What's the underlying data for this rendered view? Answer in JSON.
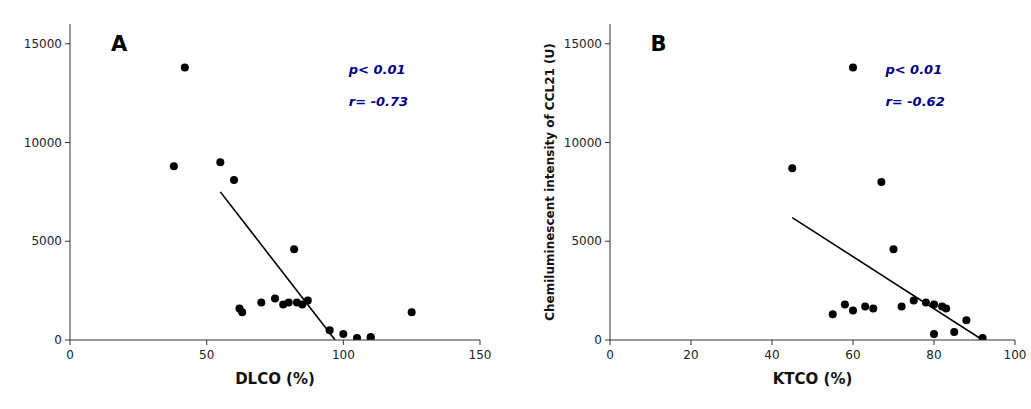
{
  "chart_data": [
    {
      "type": "scatter",
      "title": "A",
      "xlabel": "DLCO (%)",
      "xlim": [
        0,
        150
      ],
      "ylim": [
        0,
        16000
      ],
      "xticks": [
        0,
        50,
        100,
        150
      ],
      "yticks": [
        0,
        5000,
        10000,
        15000
      ],
      "grid": false,
      "annotations": [
        {
          "text": "p< 0.01",
          "color": "#00008B"
        },
        {
          "text": "r= -0.73",
          "color": "#00008B"
        }
      ],
      "series": [
        {
          "type": "scatter",
          "color": "#000000",
          "x": [
            38,
            42,
            55,
            60,
            62,
            63,
            70,
            75,
            78,
            80,
            82,
            83,
            85,
            87,
            95,
            100,
            105,
            110,
            110,
            125
          ],
          "values": [
            8800,
            13800,
            9000,
            8100,
            1600,
            1400,
            1900,
            2100,
            1800,
            1900,
            4600,
            1900,
            1800,
            2000,
            500,
            300,
            100,
            150,
            100,
            1400
          ]
        },
        {
          "type": "line",
          "color": "#000000",
          "x": [
            55,
            97
          ],
          "values": [
            7500,
            0
          ]
        }
      ]
    },
    {
      "type": "scatter",
      "title": "B",
      "xlabel": "KTCO (%)",
      "ylabel": "Chemiluminescent intensity of CCL21 (U)",
      "xlim": [
        0,
        100
      ],
      "ylim": [
        0,
        16000
      ],
      "xticks": [
        0,
        20,
        40,
        60,
        80,
        100
      ],
      "yticks": [
        0,
        5000,
        10000,
        15000
      ],
      "grid": false,
      "annotations": [
        {
          "text": "p< 0.01",
          "color": "#00008B"
        },
        {
          "text": "r= -0.62",
          "color": "#00008B"
        }
      ],
      "series": [
        {
          "type": "scatter",
          "color": "#000000",
          "x": [
            45,
            55,
            58,
            60,
            60,
            63,
            65,
            67,
            70,
            72,
            75,
            78,
            80,
            80,
            82,
            83,
            85,
            88,
            92
          ],
          "values": [
            8700,
            1300,
            1800,
            13800,
            1500,
            1700,
            1600,
            8000,
            4600,
            1700,
            2000,
            1900,
            1800,
            300,
            1700,
            1600,
            400,
            1000,
            100
          ]
        },
        {
          "type": "line",
          "color": "#000000",
          "x": [
            45,
            92
          ],
          "values": [
            6200,
            0
          ]
        }
      ]
    }
  ]
}
